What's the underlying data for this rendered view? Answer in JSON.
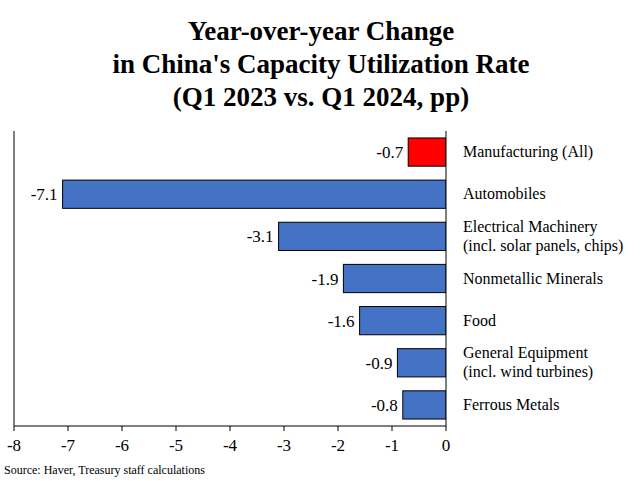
{
  "chart_data": {
    "type": "bar",
    "orientation": "horizontal",
    "title": "Year-over-year Change\nin China's Capacity Utilization Rate\n(Q1 2023 vs. Q1 2024, pp)",
    "categories": [
      "Manufacturing (All)",
      "Automobiles",
      "Electrical Machinery\n(incl. solar panels, chips)",
      "Nonmetallic Minerals",
      "Food",
      "General Equipment\n(incl. wind turbines)",
      "Ferrous Metals"
    ],
    "values": [
      -0.7,
      -7.1,
      -3.1,
      -1.9,
      -1.6,
      -0.9,
      -0.8
    ],
    "colors": [
      "#ff0000",
      "#4472c4",
      "#4472c4",
      "#4472c4",
      "#4472c4",
      "#4472c4",
      "#4472c4"
    ],
    "xlim": [
      -8,
      0
    ],
    "xticks": [
      -8,
      -7,
      -6,
      -5,
      -4,
      -3,
      -2,
      -1,
      0
    ],
    "grid": false,
    "data_labels": true,
    "source": "Source: Haver, Treasury staff calculations"
  }
}
